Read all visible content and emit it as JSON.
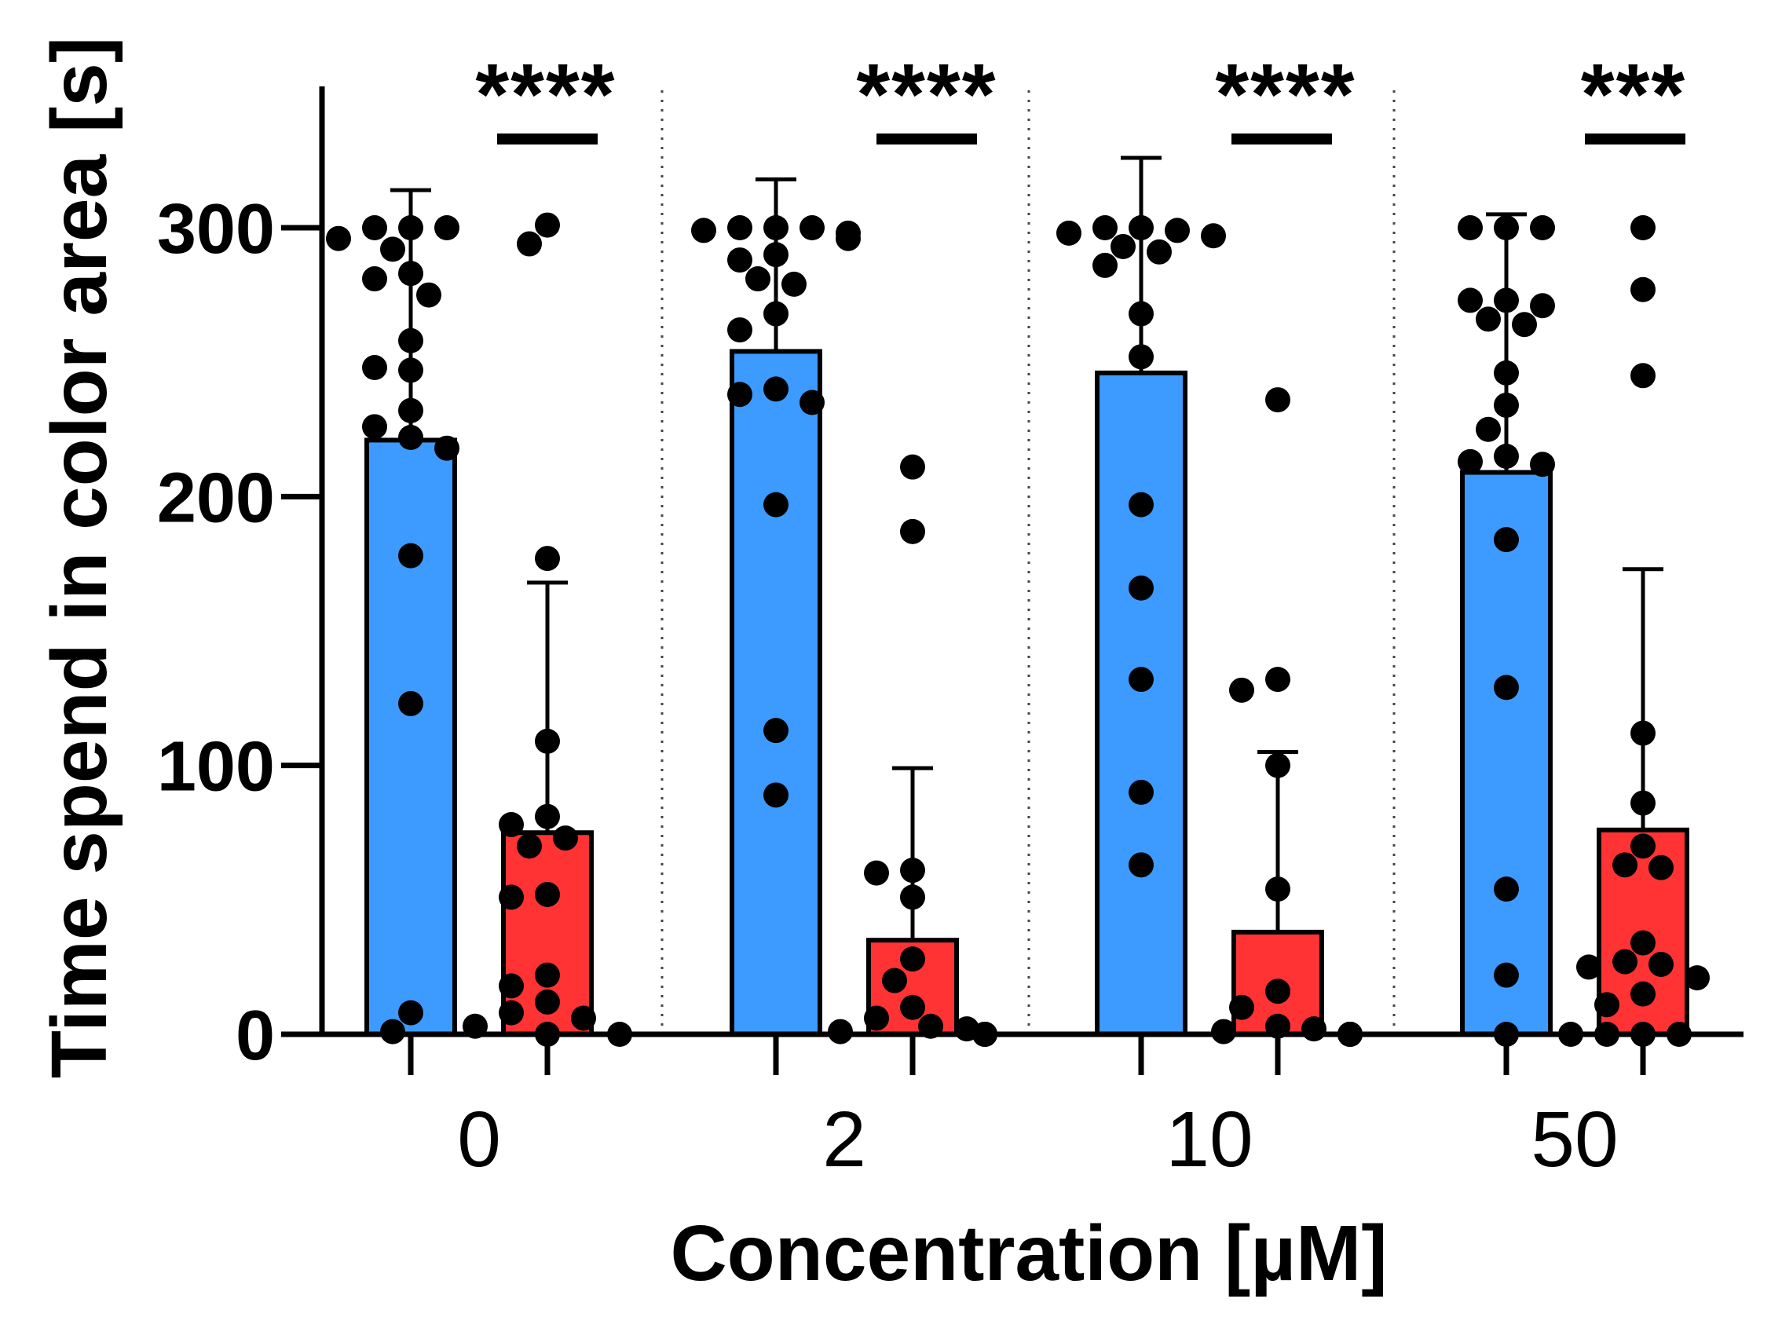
{
  "chart_data": {
    "type": "bar",
    "title": "",
    "xlabel": "Concentration [µM]",
    "ylabel": "Time spend in color area [s]",
    "ylim": [
      0,
      350
    ],
    "yticks": [
      0,
      100,
      200,
      300
    ],
    "grid": false,
    "categories": [
      "0",
      "2",
      "10",
      "50"
    ],
    "series": [
      {
        "name": "blue",
        "color": "#3d9bff",
        "values": [
          221,
          254,
          246,
          209
        ],
        "sd_upper": [
          314,
          318,
          326,
          305
        ],
        "points": [
          [
            300,
            300,
            300,
            296,
            292,
            283,
            281,
            275,
            258,
            247,
            248,
            232,
            226,
            222,
            218,
            178,
            123,
            8,
            1
          ],
          [
            300,
            300,
            300,
            299,
            298,
            296,
            290,
            288,
            281,
            279,
            268,
            262,
            240,
            238,
            235,
            197,
            113,
            89
          ],
          [
            300,
            300,
            299,
            298,
            297,
            293,
            291,
            286,
            268,
            252,
            197,
            166,
            132,
            90,
            63
          ],
          [
            300,
            300,
            300,
            273,
            273,
            271,
            266,
            264,
            246,
            234,
            225,
            215,
            213,
            212,
            184,
            129,
            54,
            22,
            0
          ]
        ]
      },
      {
        "name": "red",
        "color": "#ff3333",
        "values": [
          75,
          35,
          38,
          76
        ],
        "sd_upper": [
          168,
          99,
          105,
          173
        ],
        "points": [
          [
            301,
            294,
            177,
            109,
            81,
            78,
            73,
            70,
            52,
            51,
            22,
            18,
            12,
            8,
            6,
            3,
            0,
            0
          ],
          [
            211,
            187,
            61,
            60,
            51,
            28,
            20,
            10,
            6,
            3,
            2,
            1,
            0,
            0,
            0,
            0,
            0
          ],
          [
            236,
            132,
            128,
            100,
            54,
            16,
            10,
            3,
            2,
            1,
            0,
            0,
            0,
            0,
            0
          ],
          [
            300,
            277,
            245,
            112,
            86,
            70,
            63,
            62,
            34,
            27,
            26,
            25,
            21,
            15,
            11,
            0,
            0,
            0,
            0
          ]
        ]
      }
    ],
    "significance": [
      "****",
      "****",
      "****",
      "***"
    ]
  }
}
